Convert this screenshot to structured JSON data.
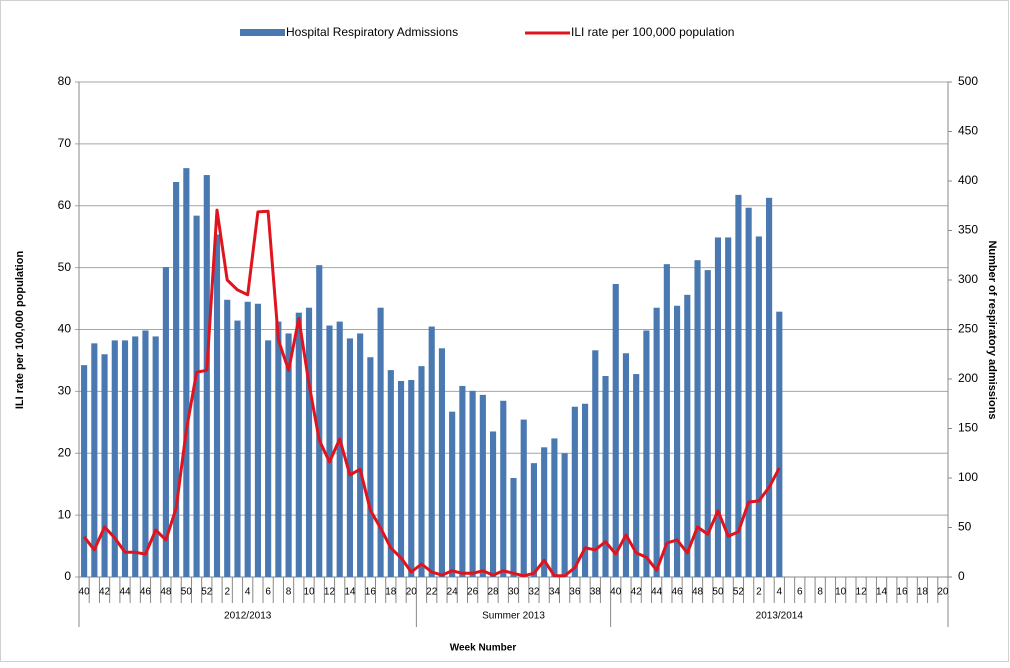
{
  "chart_data": {
    "type": "bar",
    "xlabel": "Week Number",
    "ylabel": "ILI rate per 100,000 population",
    "y2label": "Number of respiratory admissions",
    "categories": [
      "40",
      null,
      "42",
      null,
      "44",
      null,
      "46",
      null,
      "48",
      null,
      "50",
      null,
      "52",
      null,
      "2",
      null,
      "4",
      null,
      "6",
      null,
      "8",
      null,
      "10",
      null,
      "12",
      null,
      "14",
      null,
      "16",
      null,
      "18",
      null,
      "20",
      null,
      "22",
      null,
      "24",
      null,
      "26",
      null,
      "28",
      null,
      "30",
      null,
      "32",
      null,
      "34",
      null,
      "36",
      null,
      "38",
      null,
      "40",
      null,
      "42",
      null,
      "44",
      null,
      "46",
      null,
      "48",
      null,
      "50",
      null,
      "52",
      null,
      "2",
      null,
      "4",
      null,
      "6",
      null,
      "8",
      null,
      "10",
      null,
      "12",
      null,
      "14",
      null,
      "16",
      null,
      "18",
      null,
      "20"
    ],
    "groups": [
      {
        "name": "2012/2013",
        "size": 33
      },
      {
        "name": "Summer 2013",
        "size": 19
      },
      {
        "name": "2013/2014",
        "size": 33
      }
    ],
    "series": [
      {
        "name": "Hospital Respiratory Admissions",
        "type": "bar",
        "axis": "y2",
        "color": "#4a78b0",
        "values": [
          214,
          236,
          225,
          239,
          239,
          243,
          249,
          243,
          313,
          399,
          413,
          365,
          406,
          346,
          280,
          259,
          278,
          276,
          239,
          258,
          246,
          267,
          272,
          315,
          254,
          258,
          241,
          246,
          222,
          272,
          209,
          198,
          199,
          213,
          253,
          231,
          167,
          193,
          188,
          184,
          147,
          178,
          100,
          159,
          115,
          131,
          140,
          125,
          172,
          175,
          229,
          203,
          296,
          226,
          205,
          249,
          272,
          316,
          274,
          285,
          320,
          310,
          343,
          343,
          386,
          373,
          344,
          383,
          268,
          null,
          null,
          null,
          null,
          null,
          null,
          null,
          null,
          null,
          null,
          null,
          null,
          null,
          null,
          null,
          null
        ]
      },
      {
        "name": "ILI rate per 100,000 population",
        "type": "line",
        "axis": "y",
        "color": "#e0141e",
        "values": [
          6.5,
          4.4,
          8.1,
          6.3,
          4.0,
          4.0,
          3.7,
          7.6,
          6.0,
          11.1,
          23.7,
          33.1,
          33.4,
          59.3,
          48.0,
          46.4,
          45.6,
          59.0,
          59.1,
          38.3,
          33.4,
          41.8,
          31.2,
          22.1,
          18.6,
          22.3,
          16.5,
          17.4,
          10.8,
          7.9,
          4.7,
          3.1,
          0.8,
          2.1,
          0.8,
          0.3,
          1.0,
          0.6,
          0.6,
          1.0,
          0.3,
          1.0,
          0.6,
          0.2,
          0.6,
          2.7,
          0.2,
          0.2,
          1.5,
          4.7,
          4.4,
          5.7,
          3.7,
          6.8,
          3.9,
          3.2,
          1.1,
          5.5,
          6.0,
          3.9,
          8.1,
          6.9,
          10.7,
          6.6,
          7.3,
          12.1,
          12.3,
          14.5,
          17.6,
          null,
          null,
          null,
          null,
          null,
          null,
          null,
          null,
          null,
          null,
          null,
          null,
          null,
          null,
          null,
          null
        ]
      }
    ],
    "ylim": [
      0,
      80
    ],
    "yticks": [
      0,
      10,
      20,
      30,
      40,
      50,
      60,
      70,
      80
    ],
    "y2lim": [
      0,
      500
    ],
    "y2ticks": [
      0,
      50,
      100,
      150,
      200,
      250,
      300,
      350,
      400,
      450,
      500
    ],
    "grid": true
  }
}
